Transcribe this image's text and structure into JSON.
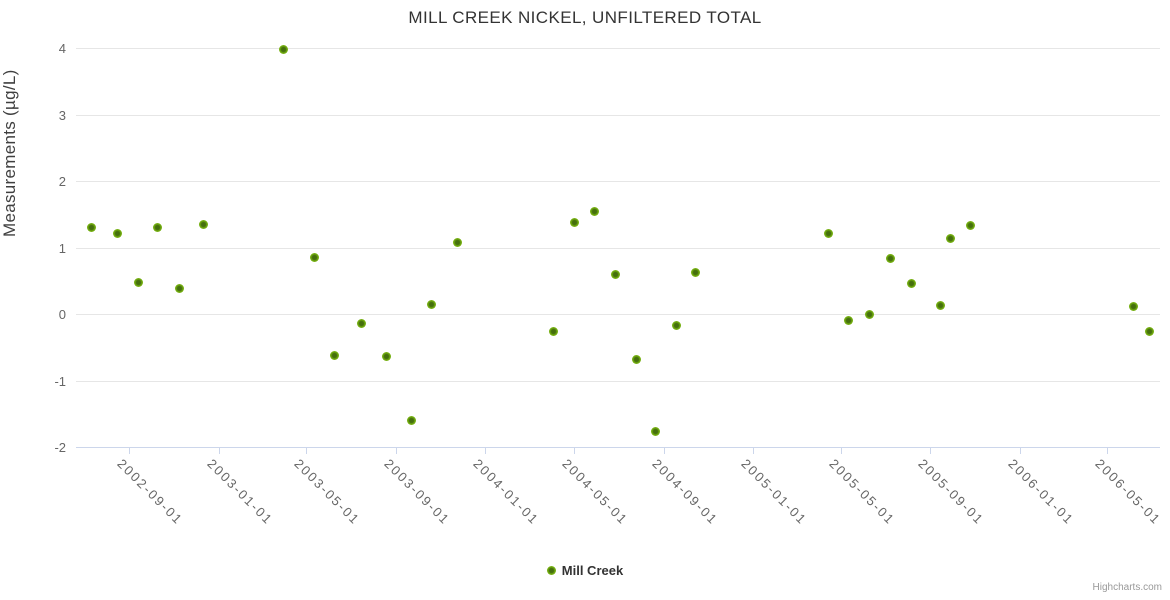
{
  "title": "MILL CREEK NICKEL, UNFILTERED TOTAL",
  "credit_label": "Highcharts.com",
  "legend": {
    "series_label": "Mill Creek",
    "marker_color": "#6fa90f"
  },
  "y_axis": {
    "title": "Measurements (µg/L)",
    "tick_labels": [
      "-2",
      "-1",
      "0",
      "1",
      "2",
      "3",
      "4"
    ]
  },
  "x_axis": {
    "tick_labels": [
      "2002-09-01",
      "2003-01-01",
      "2003-05-01",
      "2003-09-01",
      "2004-01-01",
      "2004-05-01",
      "2004-09-01",
      "2005-01-01",
      "2005-05-01",
      "2005-09-01",
      "2006-01-01",
      "2006-05-01"
    ]
  },
  "chart_data": {
    "type": "scatter",
    "title": "MILL CREEK NICKEL, UNFILTERED TOTAL",
    "xlabel": "",
    "ylabel": "Measurements (µg/L)",
    "ylim": [
      -2,
      4
    ],
    "y_ticks": [
      -2,
      -1,
      0,
      1,
      2,
      3,
      4
    ],
    "xlim": [
      "2002-06-20",
      "2006-07-12"
    ],
    "x_tick_dates": [
      "2002-09-01",
      "2003-01-01",
      "2003-05-01",
      "2003-09-01",
      "2004-01-01",
      "2004-05-01",
      "2004-09-01",
      "2005-01-01",
      "2005-05-01",
      "2005-09-01",
      "2006-01-01",
      "2006-05-01"
    ],
    "grid": true,
    "legend_position": "bottom-center",
    "series": [
      {
        "name": "Mill Creek",
        "color": "#6fa90f",
        "points": [
          {
            "date": "2002-07-11",
            "value": 1.3
          },
          {
            "date": "2002-08-16",
            "value": 1.21
          },
          {
            "date": "2002-09-13",
            "value": 0.48
          },
          {
            "date": "2002-10-10",
            "value": 1.3
          },
          {
            "date": "2002-11-08",
            "value": 0.38
          },
          {
            "date": "2002-12-12",
            "value": 1.34
          },
          {
            "date": "2003-03-31",
            "value": 3.98
          },
          {
            "date": "2003-05-12",
            "value": 0.85
          },
          {
            "date": "2003-06-08",
            "value": -0.63
          },
          {
            "date": "2003-07-15",
            "value": -0.15
          },
          {
            "date": "2003-08-19",
            "value": -0.64
          },
          {
            "date": "2003-09-22",
            "value": -1.6
          },
          {
            "date": "2003-10-20",
            "value": 0.15
          },
          {
            "date": "2003-11-24",
            "value": 1.07
          },
          {
            "date": "2004-04-03",
            "value": -0.27
          },
          {
            "date": "2004-05-02",
            "value": 1.37
          },
          {
            "date": "2004-05-29",
            "value": 1.54
          },
          {
            "date": "2004-06-27",
            "value": 0.6
          },
          {
            "date": "2004-07-26",
            "value": -0.68
          },
          {
            "date": "2004-08-21",
            "value": -1.77
          },
          {
            "date": "2004-09-19",
            "value": -0.17
          },
          {
            "date": "2004-10-15",
            "value": 0.62
          },
          {
            "date": "2005-04-15",
            "value": 1.21
          },
          {
            "date": "2005-05-12",
            "value": -0.1
          },
          {
            "date": "2005-06-10",
            "value": 0.0
          },
          {
            "date": "2005-07-08",
            "value": 0.84
          },
          {
            "date": "2005-08-06",
            "value": 0.46
          },
          {
            "date": "2005-09-15",
            "value": 0.13
          },
          {
            "date": "2005-09-28",
            "value": 1.14
          },
          {
            "date": "2005-10-26",
            "value": 1.33
          },
          {
            "date": "2006-06-06",
            "value": 0.11
          },
          {
            "date": "2006-06-28",
            "value": -0.26
          }
        ]
      }
    ]
  }
}
